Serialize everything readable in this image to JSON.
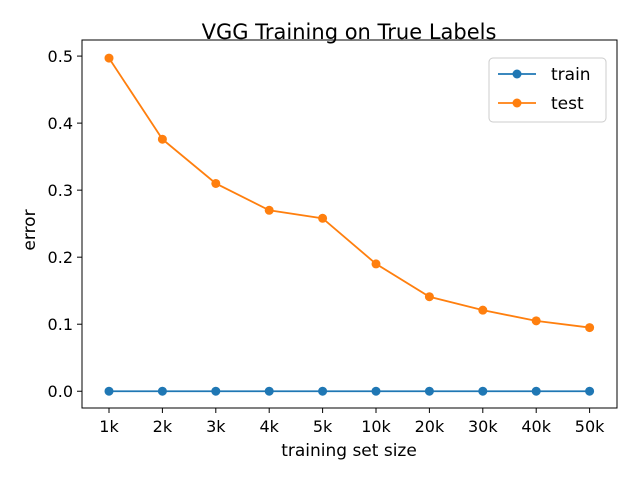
{
  "chart_data": {
    "type": "line",
    "title": "VGG Training on True Labels",
    "xlabel": "training set size",
    "ylabel": "error",
    "categories": [
      "1k",
      "2k",
      "3k",
      "4k",
      "5k",
      "10k",
      "20k",
      "30k",
      "40k",
      "50k"
    ],
    "yticks": [
      "0.0",
      "0.1",
      "0.2",
      "0.3",
      "0.4",
      "0.5"
    ],
    "ylim": [
      -0.025,
      0.524
    ],
    "grid": false,
    "legend_position": "top-right",
    "series": [
      {
        "name": "train",
        "color": "#1f77b4",
        "values": [
          0,
          0,
          0,
          0,
          0,
          0,
          0,
          0,
          0,
          0
        ]
      },
      {
        "name": "test",
        "color": "#ff7f0e",
        "values": [
          0.497,
          0.376,
          0.31,
          0.27,
          0.258,
          0.19,
          0.141,
          0.121,
          0.105,
          0.095
        ]
      }
    ]
  }
}
